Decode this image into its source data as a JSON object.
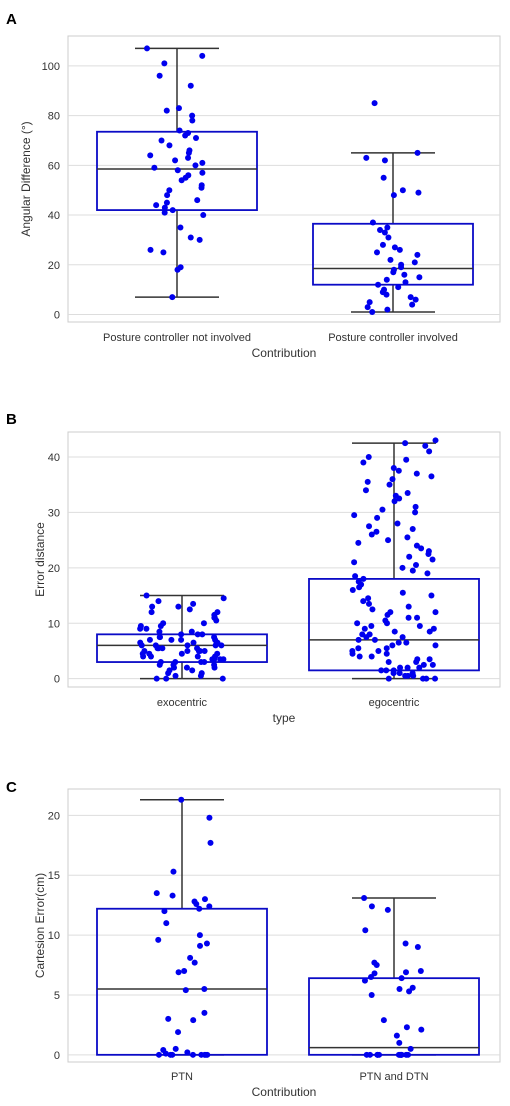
{
  "figure": {
    "panels": [
      "A",
      "B",
      "C"
    ]
  },
  "colors": {
    "box_edge": "#0b0bc6",
    "point": "#0000ee",
    "whisker": "#333333",
    "grid": "#dddddd",
    "frame": "#cccccc"
  },
  "chart_data": [
    {
      "panel": "A",
      "type": "box",
      "xlabel": "Contribution",
      "ylabel": "Angular Difference (°)",
      "ylim": [
        -3,
        112
      ],
      "yticks": [
        0,
        20,
        40,
        60,
        80,
        100
      ],
      "grid": true,
      "categories": [
        "Posture controller not involved",
        "Posture controller involved"
      ],
      "boxes": [
        {
          "whisker_low": 7,
          "q1": 42,
          "median": 58.5,
          "q3": 73.5,
          "whisker_high": 107
        },
        {
          "whisker_low": 1,
          "q1": 12,
          "median": 18.5,
          "q3": 36.5,
          "whisker_high": 65
        }
      ],
      "points": [
        [
          107,
          104,
          101,
          96,
          92,
          83,
          82,
          80,
          78,
          74,
          73,
          72,
          71,
          70,
          68,
          66,
          65,
          64,
          63,
          62,
          61,
          60,
          59,
          58,
          57,
          56,
          55,
          54,
          52,
          51,
          50,
          48,
          46,
          45,
          44,
          43,
          42,
          41,
          40,
          35,
          31,
          30,
          26,
          25,
          19,
          18,
          7
        ],
        [
          85,
          65,
          63,
          62,
          55,
          50,
          49,
          48,
          37,
          35,
          34,
          33,
          31,
          28,
          27,
          26,
          25,
          24,
          22,
          21,
          20,
          19,
          18,
          17,
          16,
          15,
          14,
          13,
          12,
          11,
          10,
          9,
          8,
          7,
          6,
          5,
          4,
          3,
          2,
          1
        ]
      ]
    },
    {
      "panel": "B",
      "type": "box",
      "xlabel": "type",
      "ylabel": "Error distance",
      "ylim": [
        -1.5,
        44.5
      ],
      "yticks": [
        0,
        10,
        20,
        30,
        40
      ],
      "grid": true,
      "categories": [
        "exocentric",
        "egocentric"
      ],
      "boxes": [
        {
          "whisker_low": 0,
          "q1": 3,
          "median": 6,
          "q3": 8,
          "whisker_high": 15
        },
        {
          "whisker_low": 0,
          "q1": 1.5,
          "median": 7,
          "q3": 18,
          "whisker_high": 42.5
        }
      ],
      "points": [
        [
          15,
          14.5,
          14,
          13.5,
          13,
          13,
          12.5,
          12,
          12,
          11.5,
          11,
          11,
          10.5,
          10,
          10,
          9.5,
          9.5,
          9,
          9,
          8.5,
          8.5,
          8,
          8,
          8,
          7.5,
          7.5,
          7.5,
          7,
          7,
          7,
          7,
          6.5,
          6.5,
          6.5,
          6.5,
          6,
          6,
          6,
          6,
          6,
          5.5,
          5.5,
          5.5,
          5.5,
          5,
          5,
          5,
          5,
          5,
          4.5,
          4.5,
          4.5,
          4.5,
          4,
          4,
          4,
          4,
          3.5,
          3.5,
          3.5,
          3.5,
          3,
          3,
          3,
          3,
          2.5,
          2.5,
          2.5,
          2,
          2,
          2,
          1.5,
          1.5,
          1,
          1,
          0.5,
          0.5,
          0,
          0,
          0
        ],
        [
          43,
          42.5,
          42,
          41,
          40,
          39.5,
          39,
          38,
          37.5,
          37,
          36.5,
          36,
          35.5,
          35,
          34,
          33.5,
          33,
          32.5,
          32,
          31,
          30.5,
          30,
          29.5,
          29,
          28,
          27.5,
          27,
          26.5,
          26,
          25.5,
          25,
          24.5,
          24,
          23.5,
          23,
          22.5,
          22,
          21.5,
          21,
          20.5,
          20,
          19.5,
          19,
          18.5,
          18,
          17.5,
          17,
          16.5,
          16,
          15.5,
          15,
          14.5,
          14,
          13.5,
          13,
          12.5,
          12,
          12,
          11.5,
          11,
          11,
          10.5,
          10,
          10,
          9.5,
          9.5,
          9,
          9,
          8.5,
          8.5,
          8,
          8,
          7.5,
          7.5,
          7,
          7,
          6.5,
          6.5,
          6,
          6,
          5.5,
          5.5,
          5,
          5,
          4.5,
          4.5,
          4,
          4,
          3.5,
          3.5,
          3,
          3,
          2.5,
          2.5,
          2,
          2,
          2,
          1.5,
          1.5,
          1.5,
          1,
          1,
          1,
          0.5,
          0.5,
          0.5,
          0,
          0,
          0,
          0
        ]
      ]
    },
    {
      "panel": "C",
      "type": "box",
      "xlabel": "Contribution",
      "ylabel": "Cartesion Error(cm)",
      "ylim": [
        -0.6,
        22.2
      ],
      "yticks": [
        0,
        5,
        10,
        15,
        20
      ],
      "grid": true,
      "categories": [
        "PTN",
        "PTN and DTN"
      ],
      "boxes": [
        {
          "whisker_low": 0,
          "q1": 0,
          "median": 5.5,
          "q3": 12.2,
          "whisker_high": 21.3
        },
        {
          "whisker_low": 0,
          "q1": 0,
          "median": 0.6,
          "q3": 6.4,
          "whisker_high": 13.1
        }
      ],
      "points": [
        [
          21.3,
          19.8,
          17.7,
          15.3,
          13.5,
          13.3,
          13.0,
          12.8,
          12.6,
          12.4,
          12.2,
          12.0,
          11.0,
          10.0,
          9.6,
          9.3,
          9.1,
          8.1,
          7.7,
          7.0,
          6.9,
          5.5,
          5.4,
          3.5,
          3.0,
          2.9,
          1.9,
          0.5,
          0.4,
          0.2,
          0.1,
          0,
          0,
          0,
          0,
          0,
          0,
          0,
          0
        ],
        [
          13.1,
          12.4,
          12.1,
          10.4,
          9.3,
          9.0,
          7.7,
          7.5,
          7.0,
          6.9,
          6.8,
          6.5,
          6.4,
          6.2,
          5.6,
          5.5,
          5.3,
          5.0,
          2.9,
          2.3,
          2.1,
          1.6,
          1.0,
          0.5,
          0,
          0,
          0,
          0,
          0,
          0,
          0,
          0,
          0,
          0,
          0,
          0
        ]
      ]
    }
  ]
}
